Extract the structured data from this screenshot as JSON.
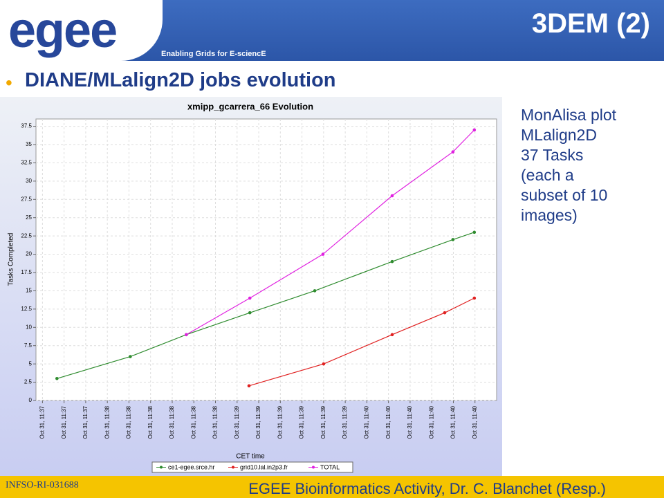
{
  "slide": {
    "logo": "egee",
    "tagline": "Enabling Grids for E-sciencE",
    "title": "3DEM (2)",
    "bullet": "DIANE/MLalign2D jobs evolution",
    "notes": [
      "MonAlisa plot",
      "MLalign2D",
      "37 Tasks",
      "(each a",
      "subset of 10",
      "images)"
    ],
    "footer_left": "INFSO-RI-031688",
    "footer_right": "EGEE Bioinformatics Activity, Dr. C. Blanchet (Resp.)"
  },
  "chart_data": {
    "type": "line",
    "title": "xmipp_gcarrera_66 Evolution",
    "x_label": "CET time",
    "y_label": "Tasks Completed",
    "xlim": [
      -0.3,
      21
    ],
    "ylim": [
      0,
      38.5
    ],
    "xticks": [
      {
        "value": 0,
        "label": "Oct 31, 11:37"
      },
      {
        "value": 1,
        "label": "Oct 31, 11:37"
      },
      {
        "value": 2,
        "label": "Oct 31, 11:37"
      },
      {
        "value": 3,
        "label": "Oct 31, 11:38"
      },
      {
        "value": 4,
        "label": "Oct 31, 11:38"
      },
      {
        "value": 5,
        "label": "Oct 31, 11:38"
      },
      {
        "value": 6,
        "label": "Oct 31, 11:38"
      },
      {
        "value": 7,
        "label": "Oct 31, 11:38"
      },
      {
        "value": 8,
        "label": "Oct 31, 11:38"
      },
      {
        "value": 9,
        "label": "Oct 31, 11:39"
      },
      {
        "value": 10,
        "label": "Oct 31, 11:39"
      },
      {
        "value": 11,
        "label": "Oct 31, 11:39"
      },
      {
        "value": 12,
        "label": "Oct 31, 11:39"
      },
      {
        "value": 13,
        "label": "Oct 31, 11:39"
      },
      {
        "value": 14,
        "label": "Oct 31, 11:39"
      },
      {
        "value": 15,
        "label": "Oct 31, 11:40"
      },
      {
        "value": 16,
        "label": "Oct 31, 11:40"
      },
      {
        "value": 17,
        "label": "Oct 31, 11:40"
      },
      {
        "value": 18,
        "label": "Oct 31, 11:40"
      },
      {
        "value": 19,
        "label": "Oct 31, 11:40"
      },
      {
        "value": 20,
        "label": "Oct 31, 11:40"
      }
    ],
    "yticks": [
      0,
      2.5,
      5,
      7.5,
      10,
      12.5,
      15,
      17.5,
      20,
      22.5,
      25,
      27.5,
      30,
      32.5,
      35,
      37.5
    ],
    "grid": true,
    "series": [
      {
        "name": "ce1-egee.srce.hr",
        "color": "#2e8b2e",
        "x": [
          0.67,
          4.06,
          6.65,
          9.59,
          12.59,
          16.17,
          18.98,
          19.97
        ],
        "values": [
          3,
          6,
          9,
          12,
          15,
          19,
          22,
          23
        ]
      },
      {
        "name": "grid10.lal.in2p3.fr",
        "color": "#e02020",
        "x": [
          9.55,
          13.0,
          16.17,
          18.6,
          19.97
        ],
        "values": [
          2,
          5,
          9,
          12,
          14
        ]
      },
      {
        "name": "TOTAL",
        "color": "#e020e0",
        "x": [
          6.65,
          9.59,
          12.97,
          16.17,
          18.98,
          19.97
        ],
        "values": [
          9,
          14,
          20,
          28,
          34,
          37
        ]
      }
    ]
  }
}
